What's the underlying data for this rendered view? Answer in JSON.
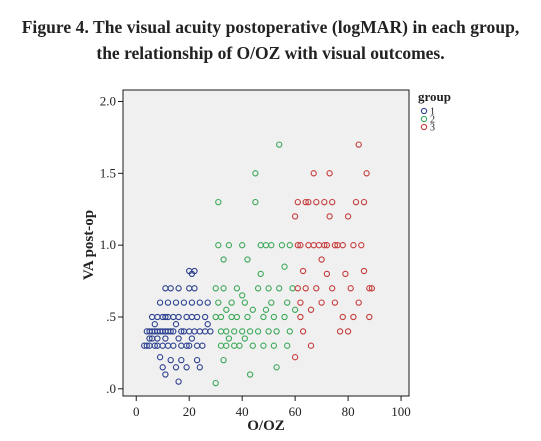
{
  "figure": {
    "caption_line1": "Figure 4. The visual acuity postoperative (logMAR) in each group,",
    "caption_line2": "the relationship of O/OZ with visual outcomes."
  },
  "chart_data": {
    "type": "scatter",
    "xlabel": "O/OZ",
    "ylabel": "VA post-op",
    "xlim": [
      -5,
      103
    ],
    "ylim": [
      -0.05,
      2.08
    ],
    "xticks": [
      "0",
      "20",
      "40",
      "60",
      "80",
      "100"
    ],
    "yticks": [
      ".0",
      ".5",
      "1.0",
      "1.5",
      "2.0"
    ],
    "legend": {
      "title": "group",
      "placement": "right-outside-top"
    },
    "grid": false,
    "series": [
      {
        "name": "1",
        "color": "#2b3f8f",
        "points": [
          [
            3,
            0.3
          ],
          [
            4,
            0.4
          ],
          [
            4,
            0.3
          ],
          [
            5,
            0.4
          ],
          [
            5,
            0.35
          ],
          [
            5,
            0.3
          ],
          [
            6,
            0.4
          ],
          [
            6,
            0.5
          ],
          [
            6,
            0.35
          ],
          [
            7,
            0.4
          ],
          [
            7,
            0.3
          ],
          [
            7,
            0.45
          ],
          [
            8,
            0.5
          ],
          [
            8,
            0.4
          ],
          [
            8,
            0.35
          ],
          [
            8,
            0.3
          ],
          [
            9,
            0.4
          ],
          [
            9,
            0.6
          ],
          [
            9,
            0.22
          ],
          [
            10,
            0.5
          ],
          [
            10,
            0.4
          ],
          [
            10,
            0.3
          ],
          [
            10,
            0.15
          ],
          [
            11,
            0.7
          ],
          [
            11,
            0.5
          ],
          [
            11,
            0.4
          ],
          [
            11,
            0.35
          ],
          [
            11,
            0.1
          ],
          [
            12,
            0.5
          ],
          [
            12,
            0.4
          ],
          [
            12,
            0.3
          ],
          [
            12,
            0.6
          ],
          [
            13,
            0.7
          ],
          [
            13,
            0.4
          ],
          [
            13,
            0.2
          ],
          [
            14,
            0.5
          ],
          [
            14,
            0.3
          ],
          [
            14,
            0.4
          ],
          [
            15,
            0.6
          ],
          [
            15,
            0.45
          ],
          [
            15,
            0.15
          ],
          [
            16,
            0.5
          ],
          [
            16,
            0.35
          ],
          [
            16,
            0.7
          ],
          [
            16,
            0.05
          ],
          [
            17,
            0.4
          ],
          [
            17,
            0.3
          ],
          [
            17,
            0.2
          ],
          [
            18,
            0.6
          ],
          [
            18,
            0.4
          ],
          [
            19,
            0.5
          ],
          [
            19,
            0.3
          ],
          [
            19,
            0.15
          ],
          [
            20,
            0.7
          ],
          [
            20,
            0.4
          ],
          [
            20,
            0.3
          ],
          [
            21,
            0.8
          ],
          [
            21,
            0.5
          ],
          [
            21,
            0.6
          ],
          [
            21,
            0.35
          ],
          [
            22,
            0.7
          ],
          [
            22,
            0.4
          ],
          [
            23,
            0.5
          ],
          [
            23,
            0.3
          ],
          [
            23,
            0.2
          ],
          [
            24,
            0.6
          ],
          [
            24,
            0.4
          ],
          [
            24,
            0.15
          ],
          [
            25,
            0.3
          ],
          [
            26,
            0.5
          ],
          [
            26,
            0.4
          ],
          [
            27,
            0.6
          ],
          [
            27,
            0.45
          ],
          [
            28,
            0.4
          ],
          [
            20,
            0.82
          ],
          [
            22,
            0.82
          ]
        ]
      },
      {
        "name": "2",
        "color": "#3aa857",
        "points": [
          [
            30,
            0.04
          ],
          [
            30,
            0.5
          ],
          [
            30,
            0.7
          ],
          [
            31,
            0.6
          ],
          [
            31,
            1.3
          ],
          [
            31,
            1.0
          ],
          [
            32,
            0.4
          ],
          [
            32,
            0.3
          ],
          [
            32,
            0.5
          ],
          [
            33,
            0.2
          ],
          [
            33,
            0.7
          ],
          [
            33,
            0.9
          ],
          [
            34,
            0.4
          ],
          [
            34,
            0.3
          ],
          [
            34,
            0.55
          ],
          [
            35,
            1.0
          ],
          [
            35,
            0.35
          ],
          [
            36,
            0.5
          ],
          [
            36,
            0.6
          ],
          [
            37,
            0.3
          ],
          [
            37,
            0.4
          ],
          [
            38,
            0.7
          ],
          [
            38,
            0.5
          ],
          [
            39,
            0.3
          ],
          [
            40,
            0.4
          ],
          [
            40,
            1.0
          ],
          [
            40,
            0.65
          ],
          [
            41,
            0.6
          ],
          [
            41,
            0.35
          ],
          [
            42,
            0.5
          ],
          [
            42,
            0.9
          ],
          [
            43,
            0.4
          ],
          [
            43,
            0.1
          ],
          [
            44,
            0.55
          ],
          [
            44,
            0.3
          ],
          [
            45,
            1.5
          ],
          [
            45,
            1.3
          ],
          [
            46,
            0.7
          ],
          [
            46,
            0.4
          ],
          [
            47,
            1.0
          ],
          [
            47,
            0.8
          ],
          [
            48,
            0.5
          ],
          [
            48,
            0.3
          ],
          [
            49,
            1.0
          ],
          [
            49,
            0.55
          ],
          [
            50,
            0.7
          ],
          [
            50,
            0.4
          ],
          [
            51,
            1.0
          ],
          [
            51,
            0.6
          ],
          [
            52,
            0.5
          ],
          [
            52,
            0.3
          ],
          [
            53,
            0.15
          ],
          [
            53,
            0.4
          ],
          [
            54,
            1.7
          ],
          [
            54,
            0.7
          ],
          [
            55,
            1.0
          ],
          [
            56,
            0.5
          ],
          [
            56,
            0.85
          ],
          [
            57,
            0.6
          ],
          [
            57,
            0.3
          ],
          [
            58,
            1.0
          ],
          [
            58,
            0.4
          ],
          [
            59,
            0.7
          ],
          [
            60,
            0.55
          ]
        ]
      },
      {
        "name": "3",
        "color": "#c63a3a",
        "points": [
          [
            60,
            1.2
          ],
          [
            60,
            0.22
          ],
          [
            61,
            1.0
          ],
          [
            61,
            0.7
          ],
          [
            61,
            1.3
          ],
          [
            62,
            0.6
          ],
          [
            62,
            0.5
          ],
          [
            62,
            1.0
          ],
          [
            63,
            0.82
          ],
          [
            63,
            0.4
          ],
          [
            64,
            1.3
          ],
          [
            64,
            0.7
          ],
          [
            65,
            1.3
          ],
          [
            65,
            1.0
          ],
          [
            66,
            0.55
          ],
          [
            66,
            0.3
          ],
          [
            67,
            1.5
          ],
          [
            67,
            1.0
          ],
          [
            68,
            1.3
          ],
          [
            68,
            0.7
          ],
          [
            69,
            1.0
          ],
          [
            70,
            0.9
          ],
          [
            70,
            0.6
          ],
          [
            71,
            1.3
          ],
          [
            71,
            1.0
          ],
          [
            72,
            0.8
          ],
          [
            72,
            1.0
          ],
          [
            73,
            1.2
          ],
          [
            73,
            1.5
          ],
          [
            74,
            1.3
          ],
          [
            74,
            0.7
          ],
          [
            75,
            1.0
          ],
          [
            75,
            0.6
          ],
          [
            76,
            1.0
          ],
          [
            77,
            0.4
          ],
          [
            78,
            0.5
          ],
          [
            78,
            1.0
          ],
          [
            79,
            0.8
          ],
          [
            80,
            1.2
          ],
          [
            80,
            0.4
          ],
          [
            81,
            0.7
          ],
          [
            82,
            1.0
          ],
          [
            82,
            0.5
          ],
          [
            83,
            1.3
          ],
          [
            84,
            0.6
          ],
          [
            84,
            1.7
          ],
          [
            85,
            1.0
          ],
          [
            86,
            1.3
          ],
          [
            86,
            0.82
          ],
          [
            87,
            1.5
          ],
          [
            88,
            0.7
          ],
          [
            88,
            0.5
          ],
          [
            89,
            0.7
          ]
        ]
      }
    ]
  }
}
